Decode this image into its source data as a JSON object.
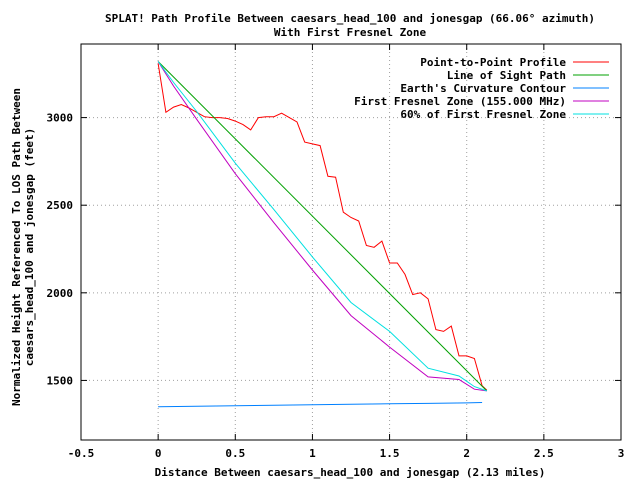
{
  "chart_data": {
    "type": "line",
    "title": "SPLAT! Path Profile Between caesars_head_100 and jonesgap (66.06° azimuth)",
    "subtitle": "With First Fresnel Zone",
    "xlabel": "Distance Between caesars_head_100 and jonesgap (2.13 miles)",
    "ylabel_line1": "Normalized Height Referenced To LOS Path Between",
    "ylabel_line2": "caesars_head_100 and jonesgap (feet)",
    "xlim": [
      -0.5,
      3
    ],
    "ylim": [
      1160,
      3420
    ],
    "x_ticks": [
      -0.5,
      0,
      0.5,
      1,
      1.5,
      2,
      2.5,
      3
    ],
    "x_tick_labels": [
      "-0.5",
      "0",
      "0.5",
      "1",
      "1.5",
      "2",
      "2.5",
      "3"
    ],
    "y_ticks": [
      1500,
      2000,
      2500,
      3000
    ],
    "y_tick_labels": [
      "1500",
      "2000",
      "2500",
      "3000"
    ],
    "grid": true,
    "legend_position": "top-right",
    "series": [
      {
        "name": "Point-to-Point Profile",
        "color": "#ff0000",
        "x": [
          0,
          0.05,
          0.1,
          0.15,
          0.2,
          0.25,
          0.3,
          0.35,
          0.4,
          0.45,
          0.5,
          0.55,
          0.6,
          0.65,
          0.7,
          0.75,
          0.8,
          0.85,
          0.9,
          0.95,
          1.0,
          1.05,
          1.1,
          1.15,
          1.2,
          1.25,
          1.3,
          1.35,
          1.4,
          1.45,
          1.5,
          1.55,
          1.6,
          1.65,
          1.7,
          1.75,
          1.8,
          1.85,
          1.9,
          1.95,
          2.0,
          2.05,
          2.1,
          2.13
        ],
        "y": [
          3310,
          3030,
          3060,
          3075,
          3055,
          3030,
          3005,
          3000,
          3000,
          2995,
          2980,
          2960,
          2930,
          3000,
          3005,
          3005,
          3025,
          3000,
          2975,
          2860,
          2850,
          2840,
          2665,
          2660,
          2460,
          2430,
          2410,
          2270,
          2260,
          2295,
          2170,
          2170,
          2105,
          1990,
          2000,
          1965,
          1790,
          1780,
          1810,
          1640,
          1640,
          1625,
          1470,
          1445
        ]
      },
      {
        "name": "Line of Sight Path",
        "color": "#00a000",
        "x": [
          0,
          2.13
        ],
        "y": [
          3320,
          1440
        ]
      },
      {
        "name": "Earth's Curvature Contour",
        "color": "#0080ff",
        "x": [
          0,
          0.25,
          0.5,
          0.75,
          1.0,
          1.25,
          1.5,
          1.75,
          2.0,
          2.1
        ],
        "y": [
          1350,
          1353,
          1356,
          1358,
          1361,
          1364,
          1367,
          1369,
          1372,
          1374
        ]
      },
      {
        "name": "First Fresnel Zone (155.000 MHz)",
        "color": "#c000c0",
        "x": [
          0,
          0.1,
          0.25,
          0.5,
          0.75,
          1.0,
          1.25,
          1.5,
          1.75,
          1.95,
          2.05,
          2.13
        ],
        "y": [
          3320,
          3180,
          2990,
          2680,
          2400,
          2130,
          1870,
          1690,
          1520,
          1505,
          1450,
          1440
        ]
      },
      {
        "name": "60% of First Fresnel Zone",
        "color": "#00e0e0",
        "x": [
          0,
          0.1,
          0.25,
          0.5,
          0.75,
          1.0,
          1.25,
          1.5,
          1.75,
          1.95,
          2.05,
          2.13
        ],
        "y": [
          3320,
          3200,
          3035,
          2740,
          2475,
          2205,
          1945,
          1780,
          1570,
          1525,
          1465,
          1440
        ]
      }
    ]
  }
}
